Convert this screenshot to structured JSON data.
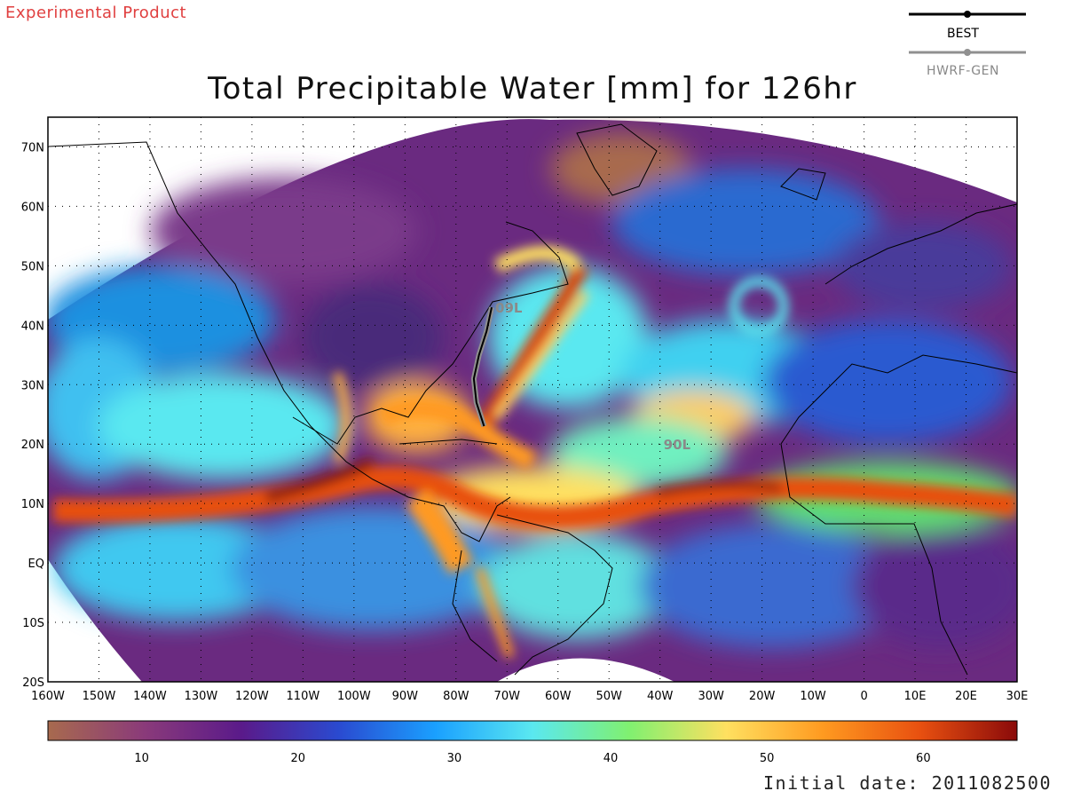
{
  "header": {
    "experimental_label": "Experimental Product",
    "title": "Total Precipitable Water [mm] for 126hr"
  },
  "legend": {
    "items": [
      {
        "label": "BEST",
        "color": "#000000"
      },
      {
        "label": "HWRF-GEN",
        "color": "#909090"
      }
    ]
  },
  "map": {
    "lat_labels": [
      "70N",
      "60N",
      "50N",
      "40N",
      "30N",
      "20N",
      "10N",
      "EQ",
      "10S",
      "20S"
    ],
    "lon_labels": [
      "160W",
      "150W",
      "140W",
      "130W",
      "120W",
      "110W",
      "100W",
      "90W",
      "80W",
      "70W",
      "60W",
      "50W",
      "40W",
      "30W",
      "20W",
      "10W",
      "0",
      "10E",
      "20E",
      "30E"
    ],
    "storms": [
      {
        "id": "09L",
        "lon": -73,
        "lat": 43
      },
      {
        "id": "90L",
        "lon": -40,
        "lat": 20
      }
    ]
  },
  "colorbar": {
    "ticks": [
      "10",
      "20",
      "30",
      "40",
      "50",
      "60"
    ],
    "colors": [
      "#a86a4e",
      "#8a3a7a",
      "#5a1a8a",
      "#2a4ad0",
      "#1aa0ff",
      "#5ae8f0",
      "#80f070",
      "#ffe060",
      "#ff9a20",
      "#e85010",
      "#8a0a0a"
    ]
  },
  "footer": {
    "initial_date": "Initial date: 2011082500"
  }
}
